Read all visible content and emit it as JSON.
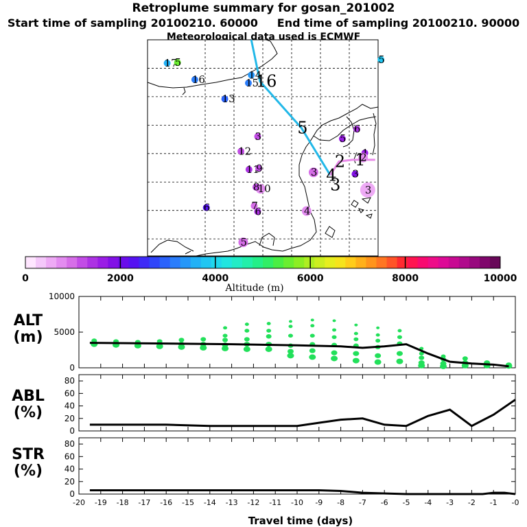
{
  "header": {
    "title": "Retroplume summary for gosan_201002",
    "start_label": "Start time of sampling 20100210. 60000",
    "end_label": "End time of sampling 20100210. 90000",
    "met_label": "Meteorological data used is ECMWF"
  },
  "colors": {
    "track": "#22b8e8",
    "release_track": "#e88ae8",
    "scatter": "#22e05a",
    "line": "#000000"
  },
  "colorbar": {
    "label": "Altitude (m)",
    "ticks": [
      "0",
      "2000",
      "4000",
      "6000",
      "8000",
      "10000"
    ],
    "range": [
      0,
      10000
    ],
    "colors": [
      "#ffe6ff",
      "#f5c8fa",
      "#eeaaf5",
      "#e38cf0",
      "#d66ee8",
      "#c24ce6",
      "#ad32e4",
      "#9a1de6",
      "#8210e6",
      "#6a0cec",
      "#5512f2",
      "#3e2af6",
      "#2f45fa",
      "#2a62fb",
      "#2a7dfb",
      "#2597f9",
      "#22b1f6",
      "#20c6f2",
      "#1fd8ec",
      "#20e6e0",
      "#22ecc6",
      "#22efaa",
      "#24ef88",
      "#30ee66",
      "#4aee44",
      "#6aee30",
      "#8cee24",
      "#aeee22",
      "#ccee20",
      "#e6ee1e",
      "#f6e41c",
      "#ffcc1a",
      "#ffb01a",
      "#ff941c",
      "#ff7622",
      "#ff5428",
      "#ff2a30",
      "#ff1450",
      "#f80a70",
      "#ee0c88",
      "#dd0a96",
      "#c80a92",
      "#b00a8c",
      "#98087e",
      "#80066c",
      "#680858"
    ]
  },
  "map": {
    "track_labels": [
      {
        "text": "16",
        "lon": -75.5,
        "lat": -17.3
      },
      {
        "text": "5",
        "lon": -68.3,
        "lat": -25.5
      },
      {
        "text": "4",
        "lon": -63.3,
        "lat": -33.8
      },
      {
        "text": "3",
        "lon": -62.6,
        "lat": -35.5
      },
      {
        "text": "2",
        "lon": -61.8,
        "lat": -31.4
      },
      {
        "text": "1",
        "lon": -58.3,
        "lat": -31.1
      }
    ],
    "points": [
      {
        "text": "17",
        "lon": -91.6,
        "lat": -14.1,
        "alt": 3500
      },
      {
        "text": "16",
        "lon": -86.8,
        "lat": -17.0,
        "alt": 3200
      },
      {
        "text": "15",
        "lon": -77.5,
        "lat": -17.6,
        "alt": 3100
      },
      {
        "text": "14",
        "lon": -77.0,
        "lat": -16.2,
        "alt": 3300
      },
      {
        "text": "13",
        "lon": -81.6,
        "lat": -20.4,
        "alt": 2900
      },
      {
        "text": "12",
        "lon": -78.8,
        "lat": -29.6,
        "alt": 1200
      },
      {
        "text": "11",
        "lon": -77.4,
        "lat": -32.8,
        "alt": 1500
      },
      {
        "text": "10",
        "lon": -75.4,
        "lat": -36.2,
        "alt": 800
      },
      {
        "text": "9",
        "lon": -75.7,
        "lat": -32.6,
        "alt": 1300
      },
      {
        "text": "8",
        "lon": -76.2,
        "lat": -35.9,
        "alt": 1200
      },
      {
        "text": "7",
        "lon": -76.5,
        "lat": -39.2,
        "alt": 1000
      },
      {
        "text": "6",
        "lon": -75.9,
        "lat": -40.2,
        "alt": 1400
      },
      {
        "text": "5",
        "lon": -78.4,
        "lat": -45.6,
        "alt": 900
      },
      {
        "text": "4",
        "lon": -67.4,
        "lat": -40.1,
        "alt": 700
      },
      {
        "text": "3",
        "lon": -75.9,
        "lat": -27.0,
        "alt": 1100
      },
      {
        "text": "6",
        "lon": -84.8,
        "lat": -39.5,
        "alt": 2200
      },
      {
        "text": "5",
        "lon": -61.2,
        "lat": -27.4,
        "alt": 1600
      },
      {
        "text": "6",
        "lon": -58.7,
        "lat": -25.7,
        "alt": 1500
      },
      {
        "text": "3",
        "lon": -66.2,
        "lat": -33.3,
        "alt": 900
      },
      {
        "text": "3",
        "lon": -59.0,
        "lat": -33.6,
        "alt": 1800
      },
      {
        "text": "1",
        "lon": -57.3,
        "lat": -29.9,
        "alt": 1700
      },
      {
        "text": "2",
        "lon": -57.6,
        "lat": -30.7,
        "alt": 800
      },
      {
        "text": "5",
        "lon": -89.8,
        "lat": -14.0,
        "alt": 5500
      },
      {
        "text": "5",
        "lon": -54.5,
        "lat": -13.5,
        "alt": 3800
      },
      {
        "text": "3",
        "lon": -56.8,
        "lat": -36.4,
        "alt": 500
      }
    ]
  },
  "chart_data": [
    {
      "type": "scatter",
      "title": "ALT",
      "ylabel": "ALT (m)",
      "xlabel": "Travel time (days)",
      "xlim": [
        -20,
        0
      ],
      "ylim": [
        0,
        10000
      ],
      "yticks": [
        "0",
        "5000",
        "10000"
      ],
      "scatter_series": [
        {
          "x": -19.3,
          "values": [
            3300,
            3500,
            3800
          ]
        },
        {
          "x": -18.3,
          "values": [
            3200,
            3400,
            3700
          ]
        },
        {
          "x": -17.3,
          "values": [
            3100,
            3300,
            3600
          ]
        },
        {
          "x": -16.3,
          "values": [
            3000,
            3300,
            3700
          ]
        },
        {
          "x": -15.3,
          "values": [
            2900,
            3300,
            3900
          ]
        },
        {
          "x": -14.3,
          "values": [
            2800,
            3300,
            4000
          ]
        },
        {
          "x": -13.3,
          "values": [
            2700,
            3200,
            3900,
            4500,
            5600
          ]
        },
        {
          "x": -12.3,
          "values": [
            2600,
            3300,
            4000,
            5200,
            6100
          ]
        },
        {
          "x": -11.3,
          "values": [
            2600,
            3300,
            4400,
            5200,
            6200
          ]
        },
        {
          "x": -10.3,
          "values": [
            1700,
            2300,
            3100,
            4500,
            5800,
            6500
          ]
        },
        {
          "x": -9.3,
          "values": [
            1500,
            2400,
            3300,
            4500,
            5900,
            6700
          ]
        },
        {
          "x": -8.3,
          "values": [
            1300,
            2100,
            3200,
            4300,
            5300,
            6600
          ]
        },
        {
          "x": -7.3,
          "values": [
            1000,
            2000,
            3100,
            4000,
            4800,
            6000
          ]
        },
        {
          "x": -6.3,
          "values": [
            800,
            1700,
            2900,
            3800,
            4600,
            5600
          ]
        },
        {
          "x": -5.3,
          "values": [
            900,
            2000,
            3400,
            4300,
            5200
          ]
        },
        {
          "x": -4.3,
          "values": [
            300,
            700,
            1400,
            2000,
            2700
          ]
        },
        {
          "x": -3.3,
          "values": [
            200,
            600,
            1200,
            1600
          ]
        },
        {
          "x": -2.3,
          "values": [
            300,
            700,
            1300
          ]
        },
        {
          "x": -1.3,
          "values": [
            300,
            700
          ]
        },
        {
          "x": -0.3,
          "values": [
            250,
            400
          ]
        }
      ],
      "line": {
        "x": [
          -19.5,
          -16,
          -13,
          -10,
          -8,
          -7,
          -6,
          -5,
          -4,
          -3,
          -2,
          -1,
          -0.3
        ],
        "values": [
          3500,
          3400,
          3300,
          3150,
          3000,
          2800,
          3000,
          3300,
          2000,
          850,
          600,
          450,
          200
        ]
      }
    },
    {
      "type": "line",
      "title": "ABL",
      "ylabel": "ABL (%)",
      "xlim": [
        -20,
        0
      ],
      "ylim": [
        0,
        90
      ],
      "yticks": [
        "0",
        "20",
        "40",
        "60",
        "80"
      ],
      "x": [
        -19.5,
        -18,
        -16,
        -14,
        -12,
        -10,
        -9,
        -8,
        -7,
        -6,
        -5,
        -4,
        -3,
        -2,
        -1,
        0
      ],
      "values": [
        10,
        10,
        10,
        8,
        8,
        8,
        13,
        18,
        20,
        10,
        8,
        24,
        34,
        8,
        26,
        50
      ]
    },
    {
      "type": "line",
      "title": "STR",
      "ylabel": "STR (%)",
      "xlim": [
        -20,
        0
      ],
      "ylim": [
        0,
        90
      ],
      "yticks": [
        "0",
        "20",
        "40",
        "60",
        "80"
      ],
      "xticks": [
        "-20",
        "-19",
        "-18",
        "-17",
        "-16",
        "-15",
        "-14",
        "-13",
        "-12",
        "-11",
        "-10",
        "-9",
        "-8",
        "-7",
        "-6",
        "-5",
        "-4",
        "-3",
        "-2",
        "-1",
        "-0"
      ],
      "x": [
        -19.5,
        -12,
        -9,
        -8,
        -7,
        -5,
        -3,
        -2,
        -1.5,
        -1,
        -0.5,
        0
      ],
      "values": [
        6,
        6,
        6,
        5,
        2,
        0,
        0,
        0,
        0,
        2,
        2,
        0
      ]
    }
  ],
  "panels": {
    "alt_title": "ALT",
    "alt_unit": "(m)",
    "abl_title": "ABL",
    "abl_unit": "(%)",
    "str_title": "STR",
    "str_unit": "(%)"
  }
}
